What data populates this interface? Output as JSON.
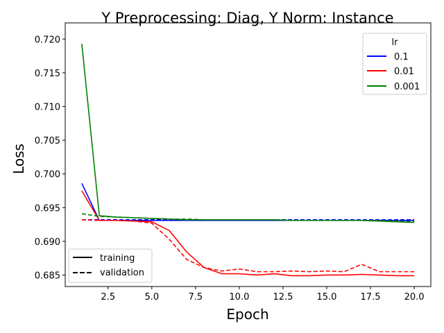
{
  "chart_data": {
    "type": "line",
    "title": "Y Preprocessing: Diag, Y Norm: Instance",
    "xlabel": "Epoch",
    "ylabel": "Loss",
    "xlim": [
      0.05,
      20.95
    ],
    "ylim": [
      0.6833,
      0.7224
    ],
    "xticks": [
      2.5,
      5.0,
      7.5,
      10.0,
      12.5,
      15.0,
      17.5,
      20.0
    ],
    "xtick_labels": [
      "2.5",
      "5.0",
      "7.5",
      "10.0",
      "12.5",
      "15.0",
      "17.5",
      "20.0"
    ],
    "yticks": [
      0.685,
      0.69,
      0.695,
      0.7,
      0.705,
      0.71,
      0.715,
      0.72
    ],
    "ytick_labels": [
      "0.685",
      "0.690",
      "0.695",
      "0.700",
      "0.705",
      "0.710",
      "0.715",
      "0.720"
    ],
    "grid": false,
    "x": [
      1,
      2,
      3,
      4,
      5,
      6,
      7,
      8,
      9,
      10,
      11,
      12,
      13,
      14,
      15,
      16,
      17,
      18,
      19,
      20
    ],
    "series": [
      {
        "lr": "0.1",
        "split": "training",
        "color": "#0000ff",
        "dash": "solid",
        "values": [
          0.6986,
          0.6931,
          0.6931,
          0.6931,
          0.6931,
          0.6931,
          0.6931,
          0.6931,
          0.6931,
          0.6931,
          0.6931,
          0.6931,
          0.6931,
          0.6931,
          0.6931,
          0.6931,
          0.6931,
          0.6931,
          0.6931,
          0.6931
        ]
      },
      {
        "lr": "0.1",
        "split": "validation",
        "color": "#0000ff",
        "dash": "dashed",
        "values": [
          0.6932,
          0.6932,
          0.6932,
          0.6932,
          0.6932,
          0.6932,
          0.6932,
          0.6932,
          0.6932,
          0.6932,
          0.6932,
          0.6932,
          0.6932,
          0.6932,
          0.6932,
          0.6932,
          0.6932,
          0.6932,
          0.6932,
          0.6932
        ]
      },
      {
        "lr": "0.01",
        "split": "training",
        "color": "#ff0000",
        "dash": "solid",
        "values": [
          0.6975,
          0.6931,
          0.6931,
          0.693,
          0.6929,
          0.6916,
          0.6884,
          0.6861,
          0.6852,
          0.6852,
          0.685,
          0.6852,
          0.6849,
          0.6849,
          0.685,
          0.685,
          0.6851,
          0.685,
          0.6849,
          0.6849
        ]
      },
      {
        "lr": "0.01",
        "split": "validation",
        "color": "#ff0000",
        "dash": "dashed",
        "values": [
          0.6932,
          0.6931,
          0.6931,
          0.693,
          0.6927,
          0.6903,
          0.6873,
          0.6861,
          0.6856,
          0.6859,
          0.6855,
          0.6855,
          0.6856,
          0.6855,
          0.6856,
          0.6855,
          0.6866,
          0.6855,
          0.6855,
          0.6855
        ]
      },
      {
        "lr": "0.001",
        "split": "training",
        "color": "#008000",
        "dash": "solid",
        "values": [
          0.7193,
          0.6938,
          0.6936,
          0.6935,
          0.6934,
          0.6933,
          0.6932,
          0.6932,
          0.6932,
          0.6932,
          0.6932,
          0.6932,
          0.6931,
          0.6931,
          0.6931,
          0.6931,
          0.6931,
          0.693,
          0.6929,
          0.6928
        ]
      },
      {
        "lr": "0.001",
        "split": "validation",
        "color": "#008000",
        "dash": "dashed",
        "values": [
          0.6941,
          0.6937,
          0.6936,
          0.6935,
          0.6934,
          0.6933,
          0.6933,
          0.6932,
          0.6932,
          0.6932,
          0.6932,
          0.6932,
          0.6931,
          0.6931,
          0.6931,
          0.6931,
          0.6931,
          0.6931,
          0.693,
          0.6929
        ]
      }
    ],
    "legend_lr": {
      "title": "lr",
      "placement": "top-right",
      "entries": [
        {
          "label": "0.1",
          "color": "#0000ff"
        },
        {
          "label": "0.01",
          "color": "#ff0000"
        },
        {
          "label": "0.001",
          "color": "#008000"
        }
      ]
    },
    "legend_split": {
      "placement": "bottom-left",
      "entries": [
        {
          "label": "training",
          "dash": "solid",
          "color": "#000000"
        },
        {
          "label": "validation",
          "dash": "dashed",
          "color": "#000000"
        }
      ]
    }
  }
}
